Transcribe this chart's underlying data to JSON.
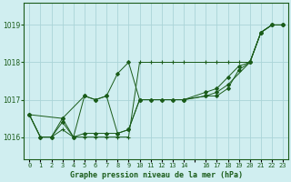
{
  "title": "Graphe pression niveau de la mer (hPa)",
  "bg_color": "#d0eef0",
  "grid_color": "#aad4d8",
  "line_color": "#1a5c1a",
  "marker_color": "#1a5c1a",
  "xlim": [
    -0.5,
    23.5
  ],
  "ylim": [
    1015.4,
    1019.6
  ],
  "yticks": [
    1016,
    1017,
    1018,
    1019
  ],
  "xtick_labels": [
    "0",
    "1",
    "2",
    "3",
    "4",
    "5",
    "6",
    "7",
    "8",
    "9",
    "10",
    "11",
    "12",
    "13",
    "14",
    "",
    "16",
    "17",
    "18",
    "19",
    "20",
    "21",
    "22",
    "23"
  ],
  "series": [
    {
      "x": [
        0,
        1,
        2,
        3,
        4,
        5,
        6,
        7,
        8,
        9,
        10,
        11,
        12,
        13,
        14,
        16,
        17,
        18,
        19,
        20,
        21,
        22,
        23
      ],
      "y": [
        1016.6,
        1016.0,
        1016.0,
        1016.2,
        1016.0,
        1016.0,
        1016.0,
        1016.0,
        1016.0,
        1016.0,
        1018.0,
        1018.0,
        1018.0,
        1018.0,
        1018.0,
        1018.0,
        1018.0,
        1018.0,
        1018.0,
        1018.0,
        1018.8,
        1019.0,
        1019.0
      ],
      "marker": "+"
    },
    {
      "x": [
        0,
        1,
        2,
        3,
        4,
        5,
        6,
        7,
        8,
        9,
        10,
        11,
        12,
        13,
        14,
        16,
        17,
        18,
        19,
        20,
        21,
        22,
        23
      ],
      "y": [
        1016.6,
        1016.0,
        1016.0,
        1016.5,
        1016.0,
        1017.1,
        1017.0,
        1017.1,
        1016.1,
        1016.2,
        1017.0,
        1017.0,
        1017.0,
        1017.0,
        1017.0,
        1017.1,
        1017.1,
        1017.3,
        1017.8,
        1018.0,
        1018.8,
        1019.0,
        1019.0
      ],
      "marker": "D"
    },
    {
      "x": [
        0,
        3,
        5,
        6,
        7,
        8,
        9,
        10,
        14,
        16,
        17,
        18,
        20,
        21,
        22,
        23
      ],
      "y": [
        1016.6,
        1016.5,
        1017.1,
        1017.0,
        1017.1,
        1017.7,
        1018.0,
        1017.0,
        1017.0,
        1017.1,
        1017.2,
        1017.4,
        1018.0,
        1018.8,
        1019.0,
        1019.0
      ],
      "marker": "D"
    },
    {
      "x": [
        0,
        1,
        2,
        3,
        4,
        5,
        6,
        7,
        8,
        9,
        10,
        11,
        12,
        13,
        14,
        16,
        17,
        18,
        19,
        20,
        21,
        22,
        23
      ],
      "y": [
        1016.6,
        1016.0,
        1016.0,
        1016.4,
        1016.0,
        1016.1,
        1016.1,
        1016.1,
        1016.1,
        1016.2,
        1017.0,
        1017.0,
        1017.0,
        1017.0,
        1017.0,
        1017.2,
        1017.3,
        1017.6,
        1017.9,
        1018.0,
        1018.8,
        1019.0,
        1019.0
      ],
      "marker": "D"
    }
  ]
}
